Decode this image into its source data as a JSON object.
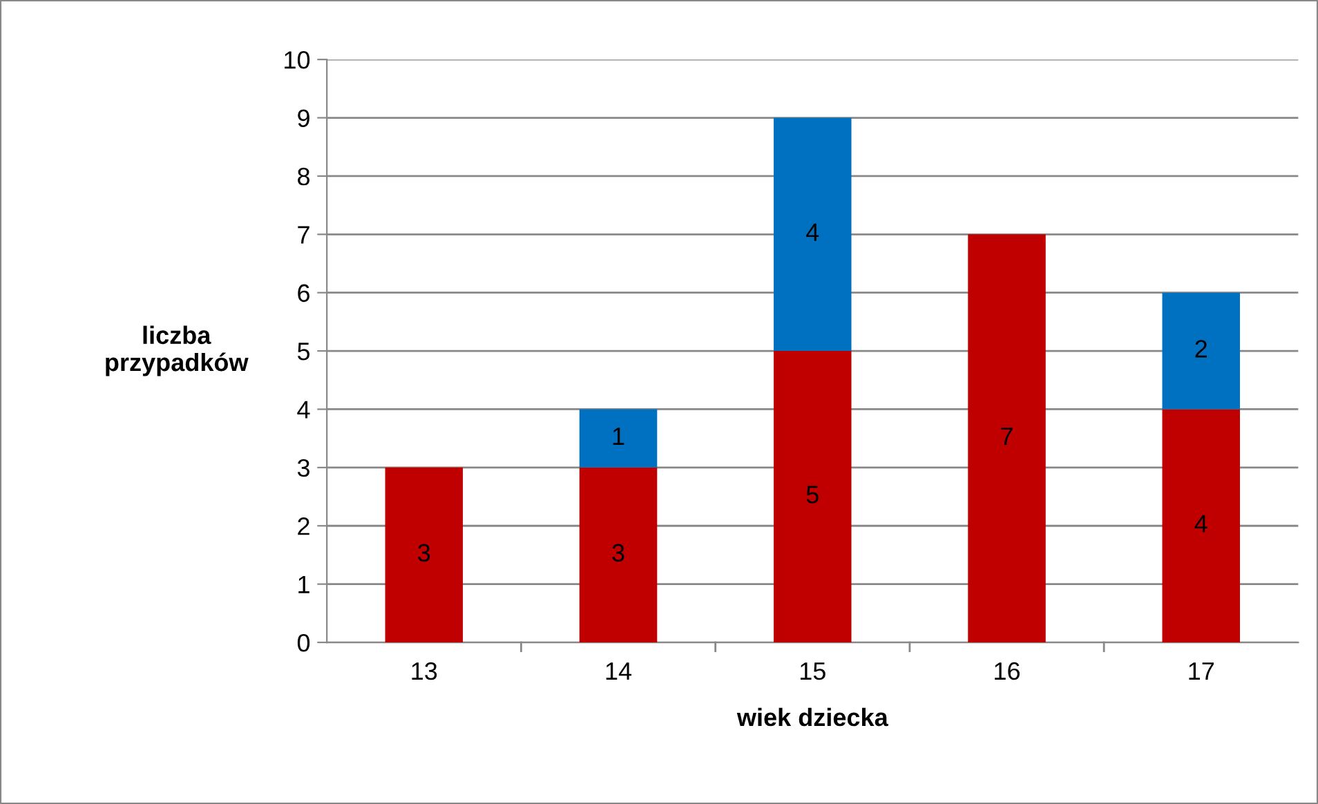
{
  "chart_data": {
    "type": "bar",
    "stacked": true,
    "xlabel": "wiek dziecka",
    "ylabel": "liczba\nprzypadków",
    "categories": [
      "13",
      "14",
      "15",
      "16",
      "17"
    ],
    "series": [
      {
        "color": "#c00000",
        "values": [
          3,
          3,
          5,
          7,
          4
        ]
      },
      {
        "color": "#0070c0",
        "values": [
          null,
          1,
          4,
          null,
          2
        ]
      }
    ],
    "ylim": [
      0,
      10
    ],
    "yticks": [
      0,
      1,
      2,
      3,
      4,
      5,
      6,
      7,
      8,
      9,
      10
    ],
    "grid": "y",
    "legend": false,
    "data_labels": true
  }
}
